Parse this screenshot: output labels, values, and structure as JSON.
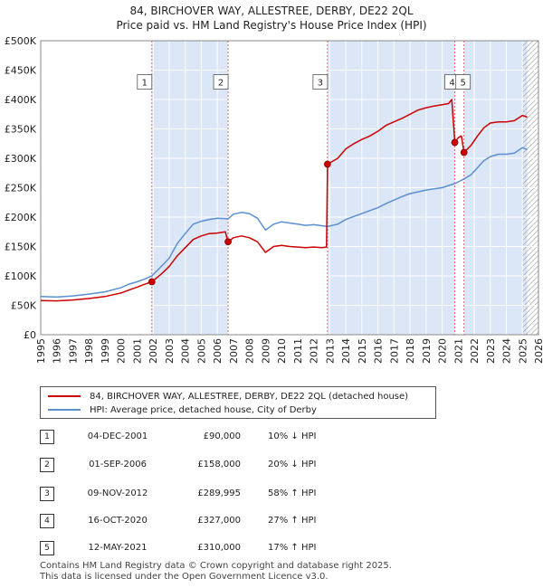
{
  "title_line1": "84, BIRCHOVER WAY, ALLESTREE, DERBY, DE22 2QL",
  "title_line2": "Price paid vs. HM Land Registry's House Price Index (HPI)",
  "colors": {
    "property": "#cc0000",
    "hpi": "#5b8fd0",
    "shade": "#dbe6f7",
    "grid": "#ffffff",
    "vline": "#dd6666"
  },
  "chart_data": {
    "type": "line",
    "title": "Price paid vs. HM Land Registry's House Price Index (HPI)",
    "xlim": [
      1995,
      2026
    ],
    "ylim": [
      0,
      500000
    ],
    "yticks": [
      {
        "value": 0,
        "label": "£0"
      },
      {
        "value": 50000,
        "label": "£50K"
      },
      {
        "value": 100000,
        "label": "£100K"
      },
      {
        "value": 150000,
        "label": "£150K"
      },
      {
        "value": 200000,
        "label": "£200K"
      },
      {
        "value": 250000,
        "label": "£250K"
      },
      {
        "value": 300000,
        "label": "£300K"
      },
      {
        "value": 350000,
        "label": "£350K"
      },
      {
        "value": 400000,
        "label": "£400K"
      },
      {
        "value": 450000,
        "label": "£450K"
      },
      {
        "value": 500000,
        "label": "£500K"
      }
    ],
    "xticks": [
      "1995",
      "1996",
      "1997",
      "1998",
      "1999",
      "2000",
      "2001",
      "2002",
      "2003",
      "2004",
      "2005",
      "2006",
      "2007",
      "2008",
      "2009",
      "2010",
      "2011",
      "2012",
      "2013",
      "2014",
      "2015",
      "2016",
      "2017",
      "2018",
      "2019",
      "2020",
      "2021",
      "2022",
      "2023",
      "2024",
      "2025",
      "2026"
    ],
    "future_hatch_from": 2025.0,
    "series": [
      {
        "name": "84, BIRCHOVER WAY, ALLESTREE, DERBY, DE22 2QL (detached house)",
        "points": [
          [
            1995.0,
            58000
          ],
          [
            1996.0,
            57500
          ],
          [
            1997.0,
            59000
          ],
          [
            1998.0,
            61500
          ],
          [
            1999.0,
            65000
          ],
          [
            2000.0,
            71000
          ],
          [
            2000.5,
            76000
          ],
          [
            2001.0,
            81000
          ],
          [
            2001.5,
            86000
          ],
          [
            2001.92,
            90000
          ],
          [
            2002.5,
            103000
          ],
          [
            2003.0,
            116000
          ],
          [
            2003.5,
            134000
          ],
          [
            2004.0,
            148000
          ],
          [
            2004.5,
            162000
          ],
          [
            2005.0,
            168000
          ],
          [
            2005.5,
            172000
          ],
          [
            2006.0,
            173000
          ],
          [
            2006.5,
            175000
          ],
          [
            2006.67,
            158000
          ],
          [
            2007.0,
            165000
          ],
          [
            2007.5,
            168000
          ],
          [
            2008.0,
            165000
          ],
          [
            2008.5,
            158000
          ],
          [
            2009.0,
            140000
          ],
          [
            2009.5,
            150000
          ],
          [
            2010.0,
            152000
          ],
          [
            2010.5,
            150000
          ],
          [
            2011.0,
            149000
          ],
          [
            2011.5,
            148000
          ],
          [
            2012.0,
            149000
          ],
          [
            2012.5,
            148000
          ],
          [
            2012.8,
            149000
          ],
          [
            2012.86,
            289995
          ],
          [
            2013.5,
            300000
          ],
          [
            2014.0,
            316000
          ],
          [
            2014.5,
            325000
          ],
          [
            2015.0,
            332000
          ],
          [
            2015.5,
            338000
          ],
          [
            2016.0,
            346000
          ],
          [
            2016.5,
            356000
          ],
          [
            2017.0,
            362000
          ],
          [
            2017.5,
            368000
          ],
          [
            2018.0,
            375000
          ],
          [
            2018.5,
            382000
          ],
          [
            2019.0,
            386000
          ],
          [
            2019.5,
            389000
          ],
          [
            2020.0,
            391000
          ],
          [
            2020.4,
            393000
          ],
          [
            2020.6,
            400000
          ],
          [
            2020.79,
            327000
          ],
          [
            2021.0,
            335000
          ],
          [
            2021.2,
            338000
          ],
          [
            2021.36,
            310000
          ],
          [
            2021.8,
            322000
          ],
          [
            2022.2,
            338000
          ],
          [
            2022.6,
            352000
          ],
          [
            2023.0,
            360000
          ],
          [
            2023.5,
            362000
          ],
          [
            2024.0,
            362000
          ],
          [
            2024.5,
            364000
          ],
          [
            2025.0,
            373000
          ],
          [
            2025.3,
            370000
          ]
        ]
      },
      {
        "name": "HPI: Average price, detached house, City of Derby",
        "points": [
          [
            1995.0,
            65000
          ],
          [
            1996.0,
            64000
          ],
          [
            1997.0,
            66000
          ],
          [
            1998.0,
            69000
          ],
          [
            1999.0,
            73000
          ],
          [
            2000.0,
            80000
          ],
          [
            2000.5,
            86000
          ],
          [
            2001.0,
            90000
          ],
          [
            2001.5,
            95000
          ],
          [
            2001.92,
            100000
          ],
          [
            2002.5,
            116000
          ],
          [
            2003.0,
            130000
          ],
          [
            2003.5,
            155000
          ],
          [
            2004.0,
            172000
          ],
          [
            2004.5,
            188000
          ],
          [
            2005.0,
            193000
          ],
          [
            2005.5,
            196000
          ],
          [
            2006.0,
            198000
          ],
          [
            2006.67,
            197000
          ],
          [
            2007.0,
            205000
          ],
          [
            2007.5,
            208000
          ],
          [
            2008.0,
            206000
          ],
          [
            2008.5,
            198000
          ],
          [
            2009.0,
            178000
          ],
          [
            2009.5,
            188000
          ],
          [
            2010.0,
            192000
          ],
          [
            2010.5,
            190000
          ],
          [
            2011.0,
            188000
          ],
          [
            2011.5,
            186000
          ],
          [
            2012.0,
            187000
          ],
          [
            2012.86,
            184000
          ],
          [
            2013.5,
            188000
          ],
          [
            2014.0,
            196000
          ],
          [
            2014.5,
            201000
          ],
          [
            2015.0,
            206000
          ],
          [
            2015.5,
            211000
          ],
          [
            2016.0,
            216000
          ],
          [
            2016.5,
            223000
          ],
          [
            2017.0,
            229000
          ],
          [
            2017.5,
            235000
          ],
          [
            2018.0,
            240000
          ],
          [
            2018.5,
            243000
          ],
          [
            2019.0,
            246000
          ],
          [
            2019.5,
            248000
          ],
          [
            2020.0,
            250000
          ],
          [
            2020.79,
            257000
          ],
          [
            2021.36,
            265000
          ],
          [
            2021.8,
            272000
          ],
          [
            2022.2,
            284000
          ],
          [
            2022.6,
            296000
          ],
          [
            2023.0,
            303000
          ],
          [
            2023.5,
            307000
          ],
          [
            2024.0,
            307000
          ],
          [
            2024.5,
            309000
          ],
          [
            2025.0,
            318000
          ],
          [
            2025.3,
            315000
          ]
        ]
      }
    ],
    "sales": [
      {
        "num": "1",
        "x": 2001.92,
        "price": 90000
      },
      {
        "num": "2",
        "x": 2006.67,
        "price": 158000
      },
      {
        "num": "3",
        "x": 2012.86,
        "price": 289995
      },
      {
        "num": "4",
        "x": 2020.79,
        "price": 327000
      },
      {
        "num": "5",
        "x": 2021.36,
        "price": 310000
      }
    ],
    "shaded_ranges": [
      [
        2001.92,
        2006.67
      ],
      [
        2012.86,
        2020.79
      ],
      [
        2021.36,
        2025.3
      ]
    ]
  },
  "legend": {
    "property_label": "84, BIRCHOVER WAY, ALLESTREE, DERBY, DE22 2QL (detached house)",
    "hpi_label": "HPI: Average price, detached house, City of Derby"
  },
  "transactions": [
    {
      "num": "1",
      "date": "04-DEC-2001",
      "price": "£90,000",
      "diff": "10% ↓ HPI"
    },
    {
      "num": "2",
      "date": "01-SEP-2006",
      "price": "£158,000",
      "diff": "20% ↓ HPI"
    },
    {
      "num": "3",
      "date": "09-NOV-2012",
      "price": "£289,995",
      "diff": "58% ↑ HPI"
    },
    {
      "num": "4",
      "date": "16-OCT-2020",
      "price": "£327,000",
      "diff": "27% ↑ HPI"
    },
    {
      "num": "5",
      "date": "12-MAY-2021",
      "price": "£310,000",
      "diff": "17% ↑ HPI"
    }
  ],
  "footer": {
    "line1": "Contains HM Land Registry data © Crown copyright and database right 2025.",
    "line2": "This data is licensed under the Open Government Licence v3.0."
  }
}
